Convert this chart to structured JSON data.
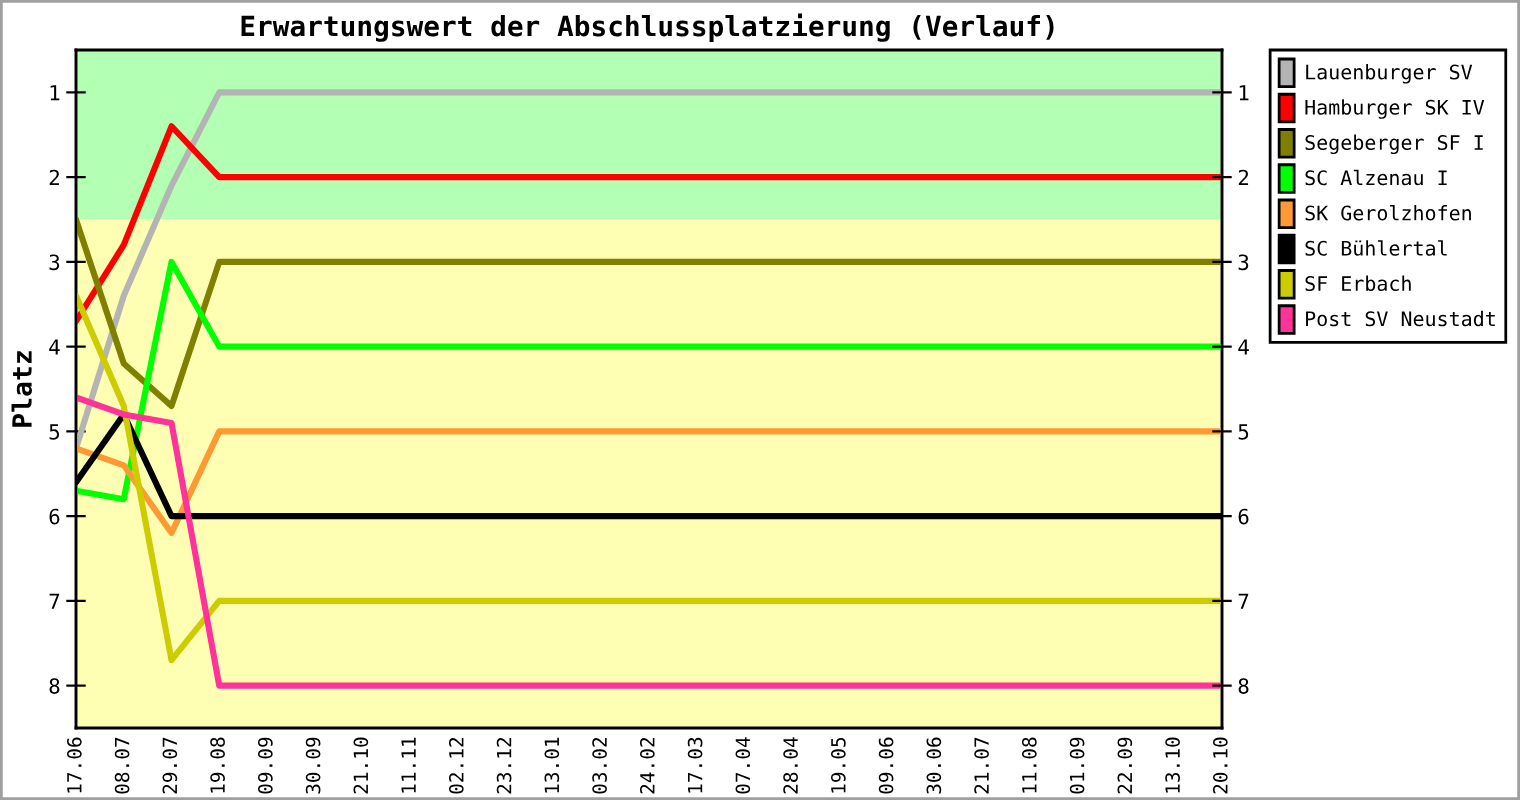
{
  "chart_data": {
    "type": "line",
    "title": "Erwartungswert der Abschlussplatzierung (Verlauf)",
    "ylabel": "Platz",
    "categories": [
      "17.06",
      "08.07",
      "29.07",
      "19.08",
      "09.09",
      "30.09",
      "21.10",
      "11.11",
      "02.12",
      "23.12",
      "13.01",
      "03.02",
      "24.02",
      "17.03",
      "07.04",
      "28.04",
      "19.05",
      "09.06",
      "30.06",
      "21.07",
      "11.08",
      "01.09",
      "22.09",
      "13.10",
      "20.10"
    ],
    "series": [
      {
        "name": "Lauenburger SV",
        "color": "#b4b4b4",
        "values": [
          5.2,
          3.4,
          2.1,
          1,
          1,
          1,
          1,
          1,
          1,
          1,
          1,
          1,
          1,
          1,
          1,
          1,
          1,
          1,
          1,
          1,
          1,
          1,
          1,
          1,
          1
        ]
      },
      {
        "name": "Hamburger SK IV",
        "color": "#ff0000",
        "values": [
          3.7,
          2.8,
          1.4,
          2,
          2,
          2,
          2,
          2,
          2,
          2,
          2,
          2,
          2,
          2,
          2,
          2,
          2,
          2,
          2,
          2,
          2,
          2,
          2,
          2,
          2
        ]
      },
      {
        "name": "Segeberger SF I",
        "color": "#808000",
        "values": [
          2.5,
          4.2,
          4.7,
          3,
          3,
          3,
          3,
          3,
          3,
          3,
          3,
          3,
          3,
          3,
          3,
          3,
          3,
          3,
          3,
          3,
          3,
          3,
          3,
          3,
          3
        ]
      },
      {
        "name": "SC Alzenau I",
        "color": "#00ff00",
        "values": [
          5.7,
          5.8,
          3,
          4,
          4,
          4,
          4,
          4,
          4,
          4,
          4,
          4,
          4,
          4,
          4,
          4,
          4,
          4,
          4,
          4,
          4,
          4,
          4,
          4,
          4
        ]
      },
      {
        "name": "SK Gerolzhofen",
        "color": "#ff9933",
        "values": [
          5.2,
          5.4,
          6.2,
          5,
          5,
          5,
          5,
          5,
          5,
          5,
          5,
          5,
          5,
          5,
          5,
          5,
          5,
          5,
          5,
          5,
          5,
          5,
          5,
          5,
          5
        ]
      },
      {
        "name": "SC Bühlertal",
        "color": "#000000",
        "values": [
          5.6,
          4.8,
          6,
          6,
          6,
          6,
          6,
          6,
          6,
          6,
          6,
          6,
          6,
          6,
          6,
          6,
          6,
          6,
          6,
          6,
          6,
          6,
          6,
          6,
          6
        ]
      },
      {
        "name": "SF Erbach",
        "color": "#cccc00",
        "values": [
          3.4,
          4.7,
          7.7,
          7,
          7,
          7,
          7,
          7,
          7,
          7,
          7,
          7,
          7,
          7,
          7,
          7,
          7,
          7,
          7,
          7,
          7,
          7,
          7,
          7,
          7
        ]
      },
      {
        "name": "Post SV Neustadt",
        "color": "#ff3399",
        "values": [
          4.6,
          4.8,
          4.9,
          8,
          8,
          8,
          8,
          8,
          8,
          8,
          8,
          8,
          8,
          8,
          8,
          8,
          8,
          8,
          8,
          8,
          8,
          8,
          8,
          8,
          8
        ]
      }
    ],
    "ylim": [
      8.5,
      0.5
    ],
    "yticks": [
      1,
      2,
      3,
      4,
      5,
      6,
      7,
      8
    ],
    "y2lim": [
      8.5,
      0.5
    ],
    "y2ticks": [
      1,
      2,
      3,
      4,
      5,
      6,
      7,
      8
    ],
    "bands": [
      {
        "axis": "y",
        "from": 0.5,
        "to": 2.5,
        "color": "#b3ffb3"
      },
      {
        "axis": "y",
        "from": 2.5,
        "to": 8.5,
        "color": "#ffffb3"
      }
    ],
    "legend": "right",
    "grid": false,
    "marker": "none",
    "line_style": "solid"
  }
}
